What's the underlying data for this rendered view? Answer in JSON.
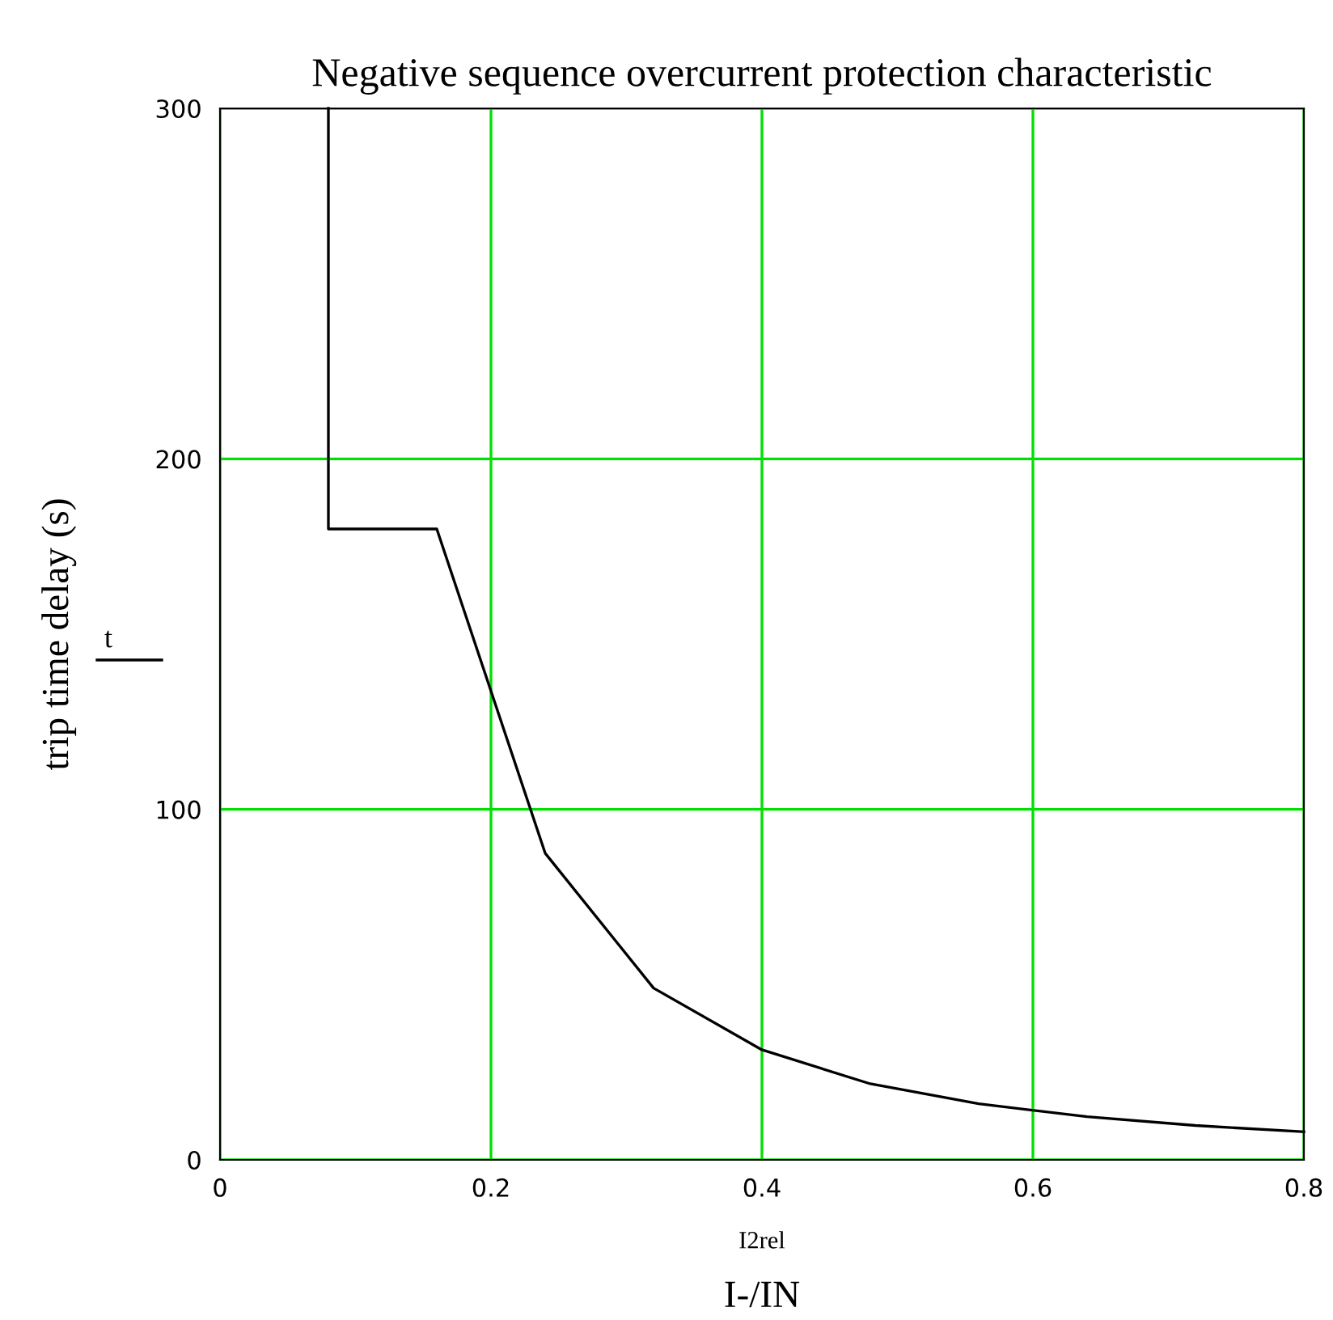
{
  "chart_data": {
    "type": "line",
    "title": "Negative sequence overcurrent protection characteristic",
    "ylabel": "trip time delay (s)",
    "xlabel": "I-/IN",
    "annotations": [
      "I2rel"
    ],
    "series": [
      {
        "name": "t",
        "color": "#000000",
        "x": [
          0.08,
          0.08,
          0.16,
          0.24,
          0.32,
          0.4,
          0.48,
          0.56,
          0.64,
          0.72,
          0.8
        ],
        "values": [
          300,
          180,
          180,
          87.5,
          49,
          31.4,
          21.7,
          16,
          12.3,
          9.8,
          8
        ]
      }
    ],
    "xlim": [
      0,
      0.8
    ],
    "ylim": [
      0,
      300
    ],
    "xticks": [
      0,
      0.2,
      0.4,
      0.6,
      0.8
    ],
    "yticks": [
      0,
      100,
      200,
      300
    ],
    "grid": true,
    "legend": "left",
    "line_style": "solid"
  }
}
